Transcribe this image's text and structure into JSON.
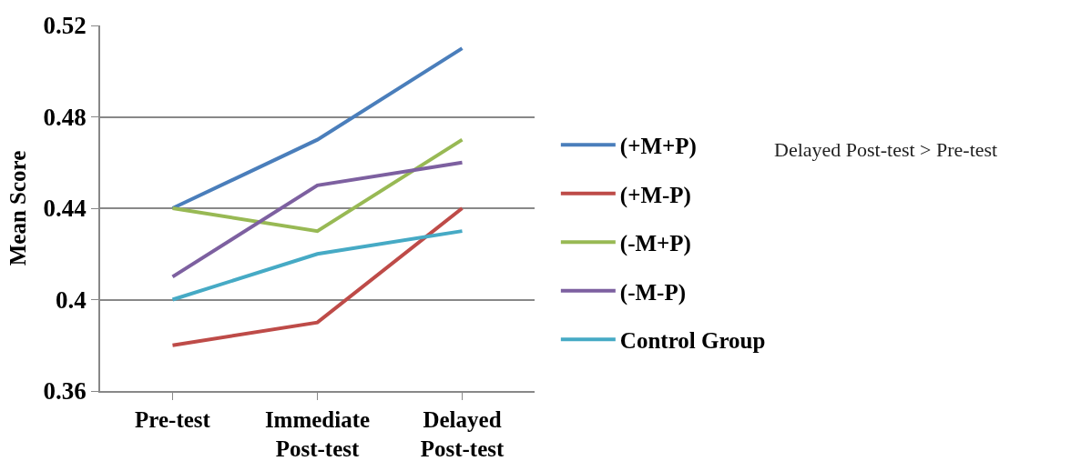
{
  "chart_data": {
    "type": "line",
    "ylabel": "Mean Score",
    "categories": [
      "Pre-test",
      "Immediate Post-test",
      "Delayed Post-test"
    ],
    "series": [
      {
        "name": "(+M+P)",
        "color": "#4a7ebb",
        "values": [
          0.44,
          0.47,
          0.51
        ]
      },
      {
        "name": "(+M-P)",
        "color": "#be4b48",
        "values": [
          0.38,
          0.39,
          0.44
        ]
      },
      {
        "name": "(-M+P)",
        "color": "#98b954",
        "values": [
          0.44,
          0.43,
          0.47
        ]
      },
      {
        "name": "(-M-P)",
        "color": "#7d60a0",
        "values": [
          0.41,
          0.45,
          0.46
        ]
      },
      {
        "name": "Control Group",
        "color": "#46aac5",
        "values": [
          0.4,
          0.42,
          0.43
        ]
      }
    ],
    "ylim": [
      0.36,
      0.52
    ],
    "yticks": [
      0.36,
      0.4,
      0.44,
      0.48,
      0.52
    ],
    "grid": "y",
    "legend": "right",
    "marker": "none",
    "line_style": "solid",
    "annotations": [
      "Delayed Post-test > Pre-test"
    ]
  }
}
